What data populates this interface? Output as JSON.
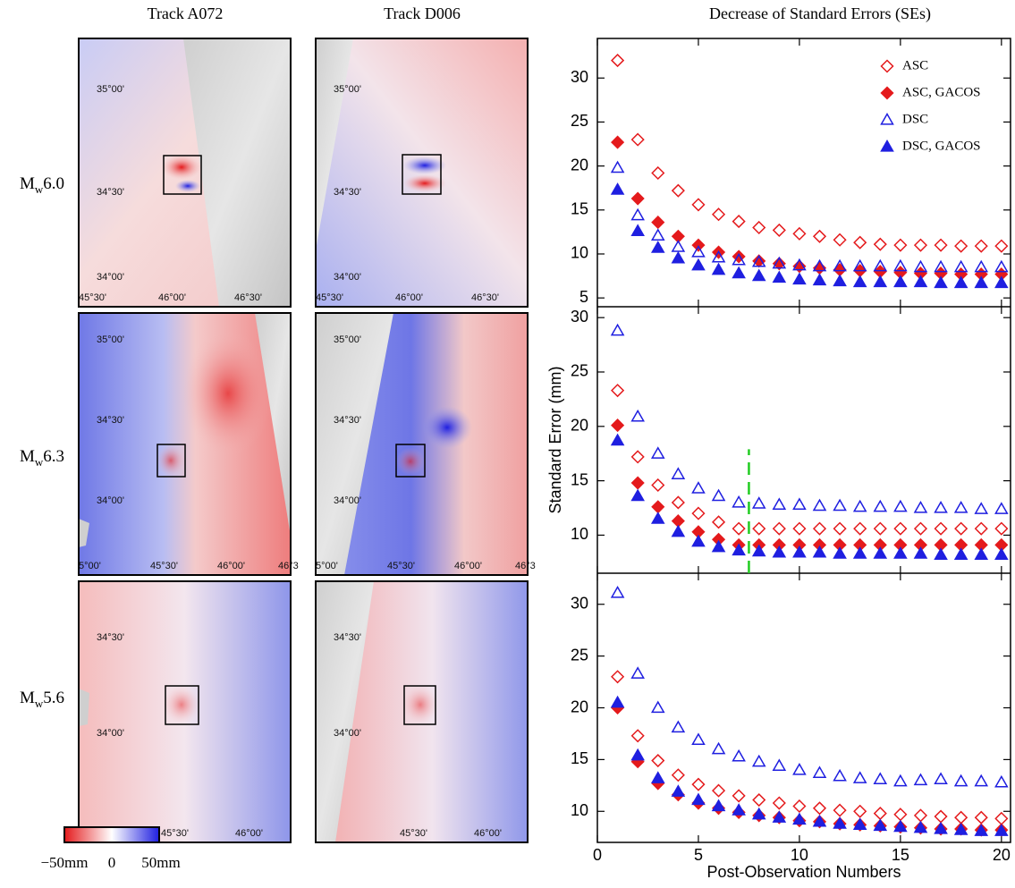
{
  "maps": {
    "columns": [
      "Track A072",
      "Track D006"
    ],
    "rows": [
      {
        "symbol": "M",
        "subscript": "w",
        "magnitude": "6.0"
      },
      {
        "symbol": "M",
        "subscript": "w",
        "magnitude": "6.3"
      },
      {
        "symbol": "M",
        "subscript": "w",
        "magnitude": "5.6"
      }
    ],
    "panels": [
      {
        "lat": [
          "35°00'",
          "34°30'",
          "34°00'"
        ],
        "lon": [
          "45°30'",
          "46°00'",
          "46°30'"
        ]
      },
      {
        "lat": [
          "35°00'",
          "34°30'",
          "34°00'"
        ],
        "lon": [
          "45°30'",
          "46°00'",
          "46°30'"
        ]
      },
      {
        "lat": [
          "35°00'",
          "34°30'",
          "34°00'"
        ],
        "lon": [
          "5°00'",
          "45°30'",
          "46°00'",
          "46°3"
        ]
      },
      {
        "lat": [
          "35°00'",
          "34°30'",
          "34°00'"
        ],
        "lon": [
          "5°00'",
          "45°30'",
          "46°00'",
          "46°3"
        ]
      },
      {
        "lat": [
          "34°30'",
          "34°00'"
        ],
        "lon": [
          "45°30'",
          "46°00'"
        ]
      },
      {
        "lat": [
          "34°30'",
          "34°00'"
        ],
        "lon": [
          "45°30'",
          "46°00'"
        ]
      }
    ]
  },
  "colorbar": {
    "labels": [
      "−50mm",
      "0",
      "50mm"
    ]
  },
  "chart_data": [
    {
      "type": "scatter",
      "title": "Decrease of Standard Errors (SEs)",
      "x": [
        1,
        2,
        3,
        4,
        5,
        6,
        7,
        8,
        9,
        10,
        11,
        12,
        13,
        14,
        15,
        16,
        17,
        18,
        19,
        20
      ],
      "xlim": [
        0,
        20.45
      ],
      "xticks": [
        0,
        5,
        10,
        15,
        20
      ],
      "ylim": [
        4,
        34.5
      ],
      "yticks": [
        5,
        10,
        15,
        20,
        25,
        30
      ],
      "legend": "upper right",
      "series": [
        {
          "name": "ASC",
          "color": "#e41a1c",
          "marker": "diamond",
          "filled": false,
          "values": [
            32,
            23,
            19.2,
            17.2,
            15.6,
            14.5,
            13.7,
            13.0,
            12.7,
            12.3,
            12.0,
            11.6,
            11.3,
            11.1,
            11.0,
            11.0,
            11.0,
            10.9,
            10.9,
            10.9
          ]
        },
        {
          "name": "ASC, GACOS",
          "color": "#e41a1c",
          "marker": "diamond",
          "filled": true,
          "values": [
            22.7,
            16.3,
            13.6,
            12.0,
            11.0,
            10.2,
            9.7,
            9.2,
            8.9,
            8.6,
            8.4,
            8.2,
            8.1,
            8.0,
            7.9,
            7.8,
            7.8,
            7.7,
            7.7,
            7.7
          ]
        },
        {
          "name": "DSC",
          "color": "#1f1fe0",
          "marker": "triangle",
          "filled": false,
          "values": [
            19.8,
            14.4,
            12.1,
            10.8,
            10.2,
            9.6,
            9.3,
            9.1,
            8.9,
            8.7,
            8.6,
            8.6,
            8.6,
            8.6,
            8.6,
            8.5,
            8.5,
            8.5,
            8.5,
            8.5
          ]
        },
        {
          "name": "DSC, GACOS",
          "color": "#1f1fe0",
          "marker": "triangle",
          "filled": true,
          "values": [
            17.3,
            12.6,
            10.7,
            9.5,
            8.7,
            8.2,
            7.8,
            7.5,
            7.3,
            7.1,
            7.0,
            6.9,
            6.8,
            6.8,
            6.8,
            6.8,
            6.7,
            6.7,
            6.7,
            6.7
          ]
        }
      ]
    },
    {
      "type": "scatter",
      "ylabel": "Standard Error (mm)",
      "x": [
        1,
        2,
        3,
        4,
        5,
        6,
        7,
        8,
        9,
        10,
        11,
        12,
        13,
        14,
        15,
        16,
        17,
        18,
        19,
        20
      ],
      "xlim": [
        0,
        20.45
      ],
      "xticks": [
        0,
        5,
        10,
        15,
        20
      ],
      "ylim": [
        6.5,
        31
      ],
      "yticks": [
        10,
        15,
        20,
        25,
        30
      ],
      "reference_line": {
        "x": 7.5,
        "y": [
          6.5,
          17.9
        ],
        "color": "#22cc22"
      },
      "series": [
        {
          "name": "ASC",
          "color": "#e41a1c",
          "marker": "diamond",
          "filled": false,
          "values": [
            23.3,
            17.2,
            14.6,
            13.0,
            12.0,
            11.2,
            10.6,
            10.6,
            10.6,
            10.6,
            10.6,
            10.6,
            10.6,
            10.6,
            10.6,
            10.6,
            10.6,
            10.6,
            10.6,
            10.6
          ]
        },
        {
          "name": "ASC, GACOS",
          "color": "#e41a1c",
          "marker": "diamond",
          "filled": true,
          "values": [
            20.1,
            14.8,
            12.6,
            11.3,
            10.3,
            9.6,
            9.1,
            9.1,
            9.1,
            9.1,
            9.1,
            9.1,
            9.1,
            9.1,
            9.1,
            9.1,
            9.1,
            9.1,
            9.1,
            9.1
          ]
        },
        {
          "name": "DSC",
          "color": "#1f1fe0",
          "marker": "triangle",
          "filled": false,
          "values": [
            28.8,
            20.9,
            17.5,
            15.6,
            14.3,
            13.6,
            13.0,
            12.9,
            12.8,
            12.8,
            12.7,
            12.7,
            12.6,
            12.6,
            12.6,
            12.5,
            12.5,
            12.5,
            12.4,
            12.4
          ]
        },
        {
          "name": "DSC, GACOS",
          "color": "#1f1fe0",
          "marker": "triangle",
          "filled": true,
          "values": [
            18.7,
            13.6,
            11.5,
            10.3,
            9.4,
            8.9,
            8.6,
            8.5,
            8.4,
            8.4,
            8.4,
            8.3,
            8.3,
            8.3,
            8.3,
            8.3,
            8.2,
            8.2,
            8.2,
            8.2
          ]
        }
      ]
    },
    {
      "type": "scatter",
      "xlabel": "Post-Observation Numbers",
      "x": [
        1,
        2,
        3,
        4,
        5,
        6,
        7,
        8,
        9,
        10,
        11,
        12,
        13,
        14,
        15,
        16,
        17,
        18,
        19,
        20
      ],
      "xlim": [
        0,
        20.45
      ],
      "xticks": [
        0,
        5,
        10,
        15,
        20
      ],
      "ylim": [
        7,
        33
      ],
      "yticks": [
        10,
        15,
        20,
        25,
        30
      ],
      "series": [
        {
          "name": "ASC",
          "color": "#e41a1c",
          "marker": "diamond",
          "filled": false,
          "values": [
            23.0,
            17.3,
            14.9,
            13.5,
            12.6,
            12.0,
            11.5,
            11.1,
            10.8,
            10.5,
            10.3,
            10.1,
            10.0,
            9.8,
            9.7,
            9.6,
            9.5,
            9.4,
            9.4,
            9.3
          ]
        },
        {
          "name": "ASC, GACOS",
          "color": "#e41a1c",
          "marker": "diamond",
          "filled": true,
          "values": [
            20.0,
            14.8,
            12.7,
            11.6,
            10.8,
            10.3,
            9.9,
            9.6,
            9.4,
            9.1,
            9.0,
            8.8,
            8.7,
            8.6,
            8.5,
            8.4,
            8.3,
            8.3,
            8.2,
            8.2
          ]
        },
        {
          "name": "DSC",
          "color": "#1f1fe0",
          "marker": "triangle",
          "filled": false,
          "values": [
            31.1,
            23.3,
            20.0,
            18.1,
            16.9,
            16.0,
            15.3,
            14.8,
            14.4,
            14.0,
            13.7,
            13.4,
            13.2,
            13.1,
            12.9,
            13.0,
            13.1,
            12.9,
            12.9,
            12.8
          ]
        },
        {
          "name": "DSC, GACOS",
          "color": "#1f1fe0",
          "marker": "triangle",
          "filled": true,
          "values": [
            20.5,
            15.4,
            13.2,
            11.9,
            11.1,
            10.5,
            10.1,
            9.7,
            9.4,
            9.2,
            9.0,
            8.8,
            8.7,
            8.6,
            8.5,
            8.4,
            8.3,
            8.2,
            8.1,
            8.1
          ]
        }
      ]
    }
  ]
}
